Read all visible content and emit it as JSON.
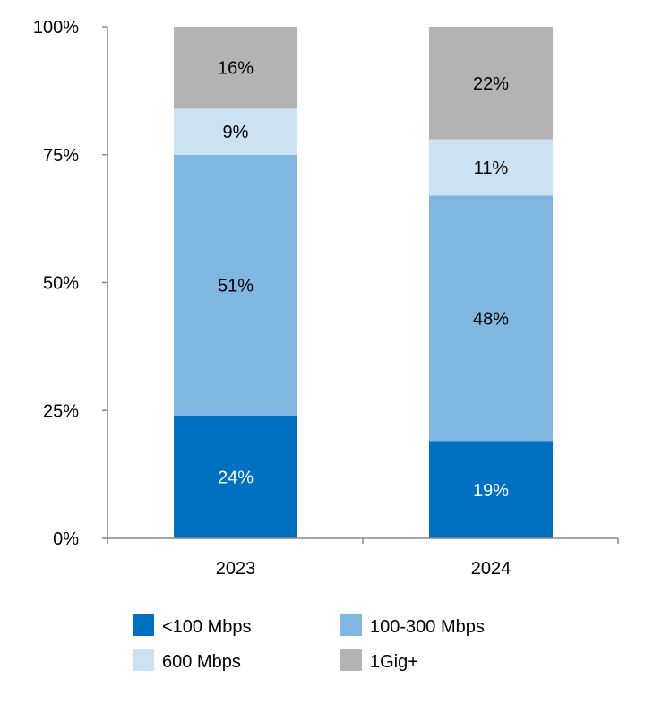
{
  "chart_data": {
    "type": "bar",
    "stacked": true,
    "categories": [
      "2023",
      "2024"
    ],
    "series": [
      {
        "name": "<100 Mbps",
        "values": [
          24,
          19
        ],
        "color": "#0070C0",
        "label_color": "#FFFFFF"
      },
      {
        "name": "100-300  Mbps",
        "values": [
          51,
          48
        ],
        "color": "#80B7E1",
        "label_color": "#000000"
      },
      {
        "name": "600 Mbps",
        "values": [
          9,
          11
        ],
        "color": "#CCE2F3",
        "label_color": "#000000"
      },
      {
        "name": "1Gig+",
        "values": [
          16,
          22
        ],
        "color": "#B3B3B3",
        "label_color": "#000000"
      }
    ],
    "data_labels": [
      [
        "24%",
        "19%"
      ],
      [
        "51%",
        "48%"
      ],
      [
        "9%",
        "11%"
      ],
      [
        "16%",
        "22%"
      ]
    ],
    "ylim": [
      0,
      100
    ],
    "yticks": [
      0,
      25,
      50,
      75,
      100
    ],
    "ytick_labels": [
      "0%",
      "25%",
      "50%",
      "75%",
      "100%"
    ],
    "grid": false,
    "legend_position": "bottom",
    "title": "",
    "xlabel": "",
    "ylabel": ""
  }
}
